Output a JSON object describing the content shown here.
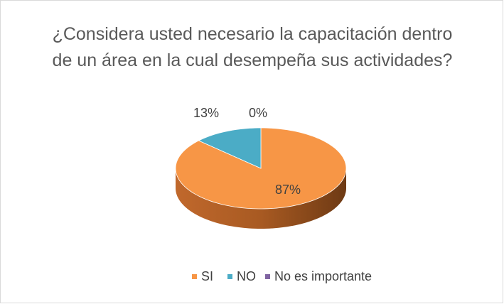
{
  "chart_data": {
    "type": "pie",
    "title": "¿Considera usted necesario la capacitación dentro de un área en la cual desempeña sus actividades?",
    "categories": [
      "SI",
      "NO",
      "No es importante"
    ],
    "values": [
      87,
      13,
      0
    ],
    "value_labels": [
      "87%",
      "13%",
      "0%"
    ],
    "colors": [
      "#f79646",
      "#4bacc6",
      "#8064a2"
    ],
    "legend": "bottom"
  }
}
